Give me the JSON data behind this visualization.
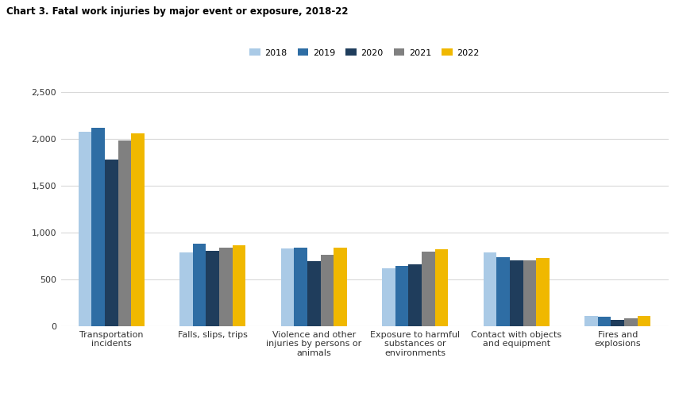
{
  "title": "Chart 3. Fatal work injuries by major event or exposure, 2018-22",
  "categories": [
    "Transportation\nincidents",
    "Falls, slips, trips",
    "Violence and other\ninjuries by persons or\nanimals",
    "Exposure to harmful\nsubstances or\nenvironments",
    "Contact with objects\nand equipment",
    "Fires and\nexplosions"
  ],
  "years": [
    "2018",
    "2019",
    "2020",
    "2021",
    "2022"
  ],
  "colors": [
    "#aacae6",
    "#2e6da4",
    "#1f3d5c",
    "#808080",
    "#f0b800"
  ],
  "data": {
    "2018": [
      2080,
      786,
      828,
      621,
      786,
      115
    ],
    "2019": [
      2122,
      880,
      841,
      644,
      741,
      103
    ],
    "2020": [
      1778,
      805,
      700,
      662,
      705,
      72
    ],
    "2021": [
      1982,
      839,
      761,
      798,
      705,
      83
    ],
    "2022": [
      2058,
      865,
      844,
      825,
      733,
      115
    ]
  },
  "ylim": [
    0,
    2700
  ],
  "yticks": [
    0,
    500,
    1000,
    1500,
    2000,
    2500
  ],
  "ytick_labels": [
    "0",
    "500",
    "1,000",
    "1,500",
    "2,000",
    "2,500"
  ],
  "grid_color": "#d9d9d9",
  "background_color": "#ffffff",
  "title_fontsize": 8.5,
  "tick_fontsize": 8,
  "legend_fontsize": 8,
  "bar_width": 0.13
}
